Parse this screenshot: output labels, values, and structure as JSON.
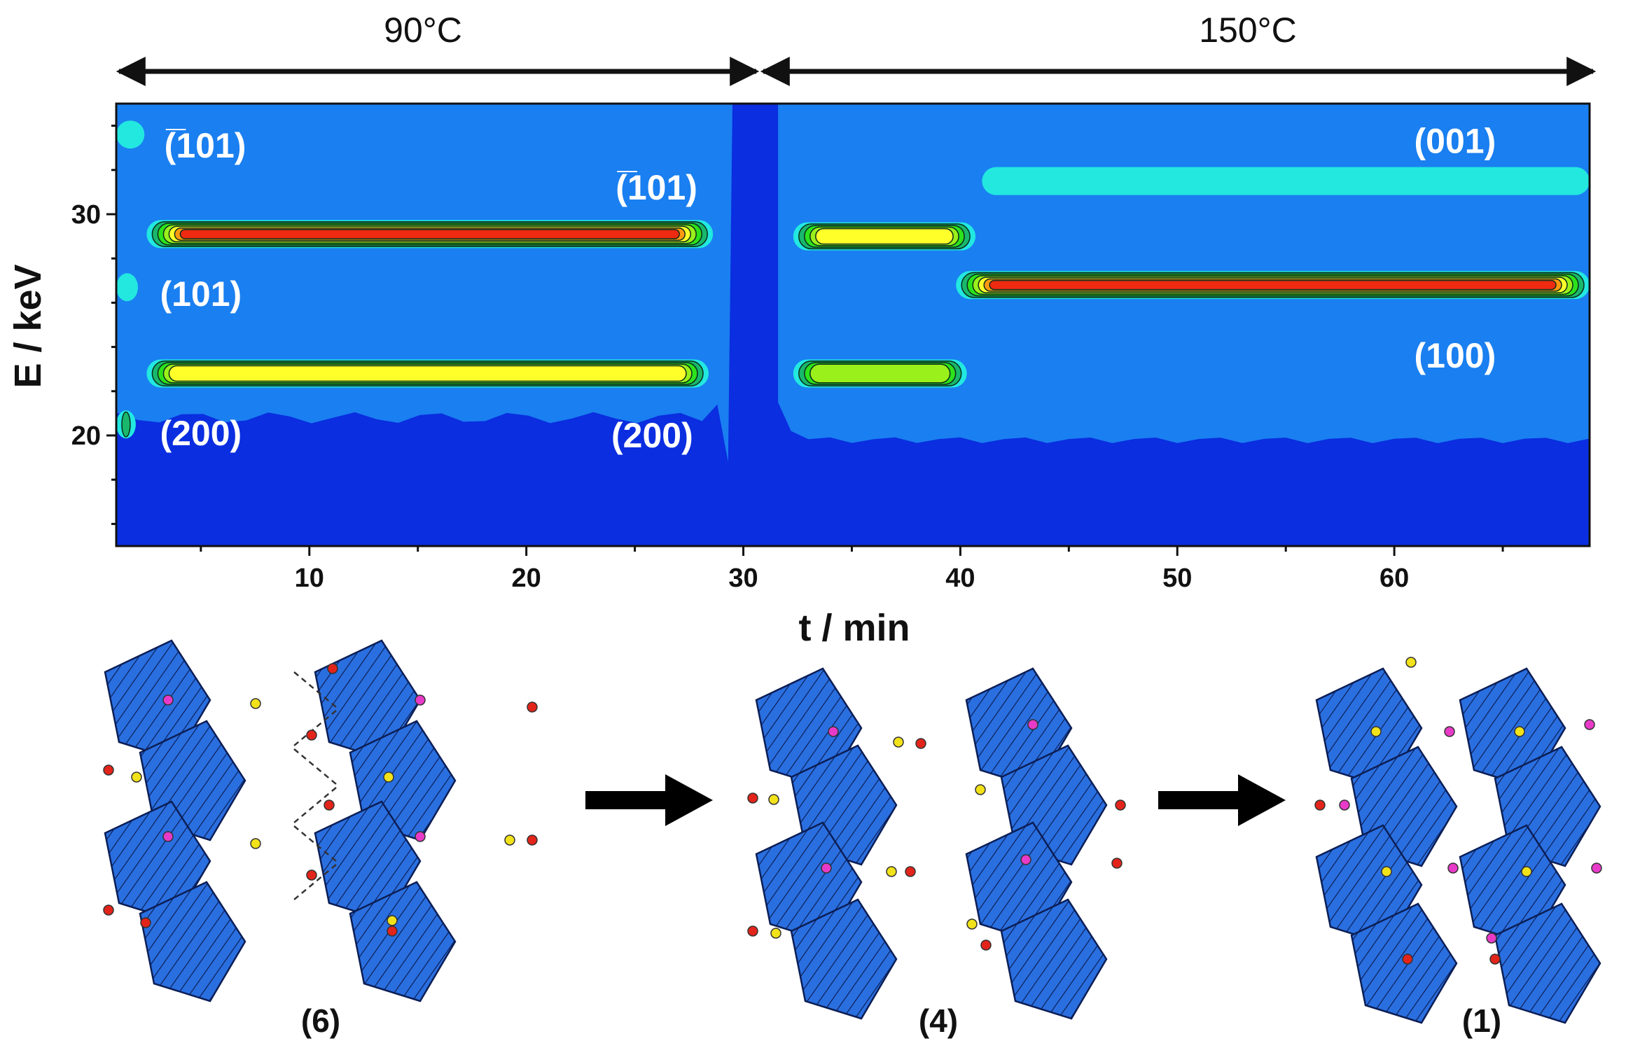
{
  "temperature_bar": {
    "segments": [
      {
        "label": "90°C",
        "t_start": 0,
        "t_end": 30.7
      },
      {
        "label": "150°C",
        "t_start": 30.7,
        "t_end": 69
      }
    ]
  },
  "chart_data": {
    "type": "heatmap",
    "title": "",
    "xlabel": "t / min",
    "ylabel": "E / keV",
    "xlim": [
      1.1,
      69
    ],
    "ylim": [
      15,
      35
    ],
    "xticks": [
      10,
      20,
      30,
      40,
      50,
      60
    ],
    "yticks": [
      20,
      30
    ],
    "colors": {
      "background": "#1a7ff0",
      "low": "#0a2ee0",
      "level1": "#22e8e0",
      "level2": "#19b86c",
      "level3": "#2ce21c",
      "level4": "#9af01a",
      "level5": "#ffff2a",
      "level6": "#ff9a10",
      "level7": "#ee2a10"
    },
    "bands": [
      {
        "t_start": 2.5,
        "t_end": 28.6,
        "e_center": 29.1,
        "peak": 7
      },
      {
        "t_start": 2.5,
        "t_end": 28.4,
        "e_center": 22.8,
        "peak": 5
      },
      {
        "t_start": 32.3,
        "t_end": 40.7,
        "e_center": 29.0,
        "peak": 5
      },
      {
        "t_start": 32.3,
        "t_end": 40.3,
        "e_center": 22.8,
        "peak": 4
      },
      {
        "t_start": 39.8,
        "t_end": 69,
        "e_center": 26.8,
        "peak": 7
      },
      {
        "t_start": 41,
        "t_end": 69,
        "e_center": 31.5,
        "peak": 1
      },
      {
        "t_start": 1.1,
        "t_end": 2.4,
        "e_center": 33.6,
        "peak": 1
      },
      {
        "t_start": 1.1,
        "t_end": 2.1,
        "e_center": 26.7,
        "peak": 1
      },
      {
        "t_start": 1.1,
        "t_end": 2.0,
        "e_center": 20.5,
        "peak": 3
      }
    ],
    "annotations": [
      {
        "text": "(̅101)",
        "t": 5.2,
        "e": 33.1
      },
      {
        "text": "(̅101)",
        "t": 26.0,
        "e": 31.2
      },
      {
        "text": "(101)",
        "t": 5.0,
        "e": 26.4
      },
      {
        "text": "(200)",
        "t": 5.0,
        "e": 20.1
      },
      {
        "text": "(200)",
        "t": 25.8,
        "e": 20.0
      },
      {
        "text": "(001)",
        "t": 62.8,
        "e": 33.3
      },
      {
        "text": "(100)",
        "t": 62.8,
        "e": 23.6
      }
    ]
  },
  "structures": [
    {
      "label": "(6)"
    },
    {
      "label": "(4)"
    },
    {
      "label": "(1)"
    }
  ]
}
